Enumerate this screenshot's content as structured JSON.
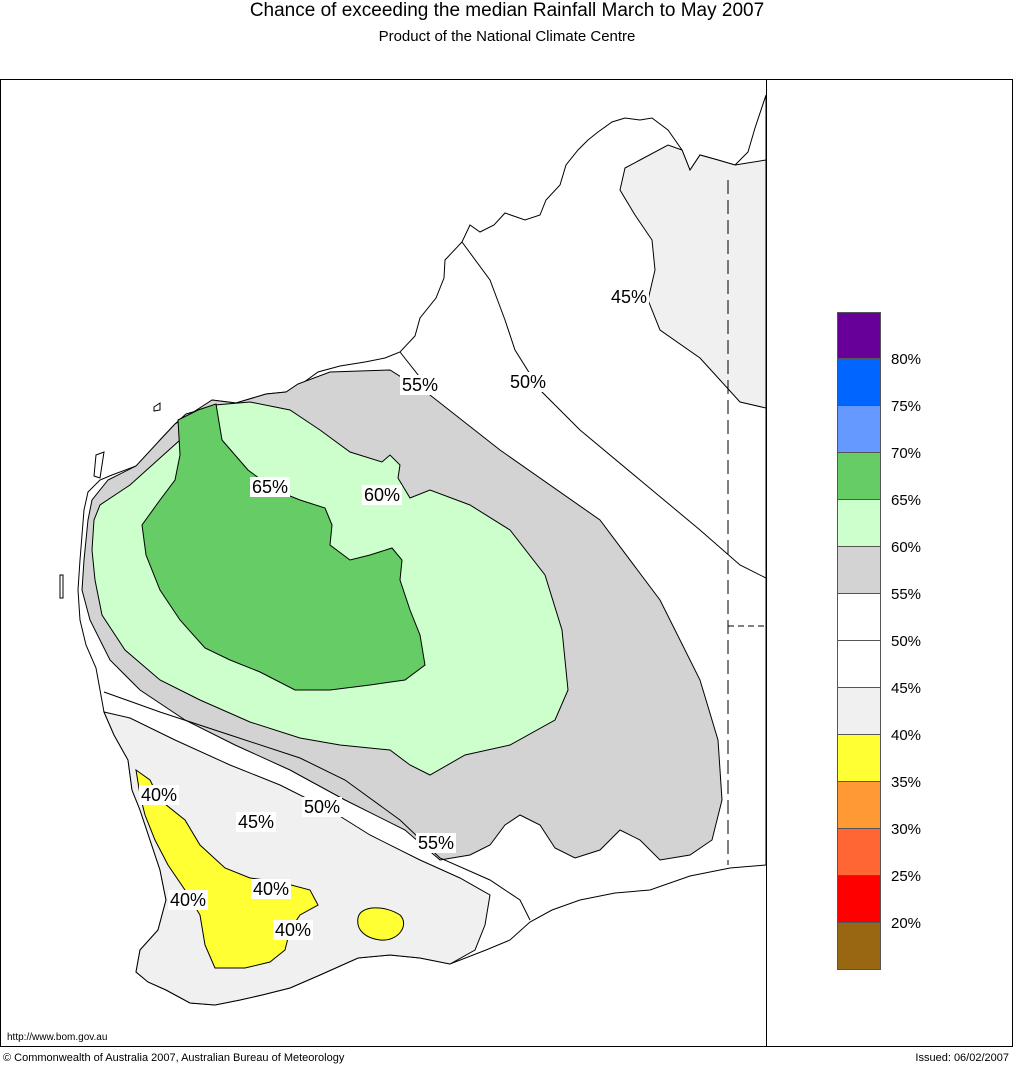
{
  "title": "Chance of exceeding the median Rainfall March to May 2007",
  "subtitle": "Product of the National Climate Centre",
  "contour_labels": [
    "45%",
    "55%",
    "50%",
    "65%",
    "60%",
    "40%",
    "45%",
    "50%",
    "55%",
    "40%",
    "40%",
    "40%"
  ],
  "legend": {
    "colors": [
      "#660099",
      "#0066ff",
      "#6699ff",
      "#66cc66",
      "#ccffcc",
      "#d3d3d3",
      "#ffffff",
      "#ffffff",
      "#f0f0f0",
      "#ffff33",
      "#ff9933",
      "#ff6633",
      "#ff0000",
      "#996611"
    ],
    "ticks": [
      "80%",
      "75%",
      "70%",
      "65%",
      "60%",
      "55%",
      "50%",
      "45%",
      "40%",
      "35%",
      "30%",
      "25%",
      "20%"
    ]
  },
  "footer": {
    "url": "http://www.bom.gov.au",
    "copyright": "© Commonwealth of Australia 2007, Australian Bureau of Meteorology",
    "issued": "Issued: 06/02/2007"
  }
}
